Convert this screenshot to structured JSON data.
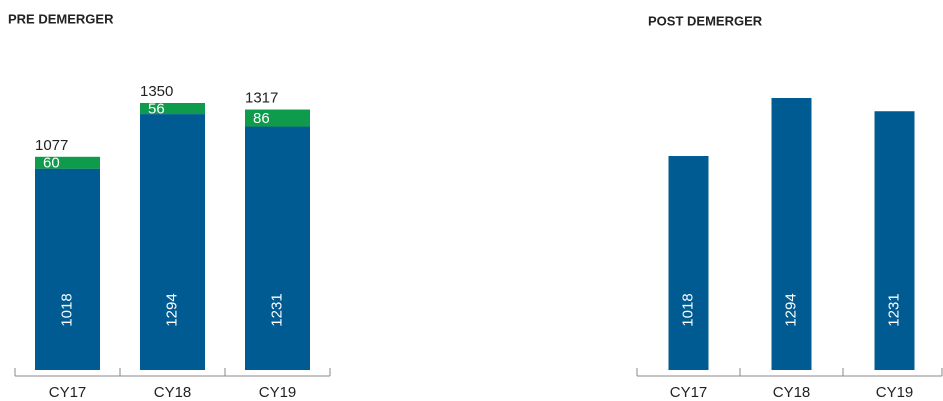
{
  "chart_data": [
    {
      "type": "bar",
      "stacked": true,
      "title": "PRE DEMERGER",
      "categories": [
        "CY17",
        "CY18",
        "CY19"
      ],
      "series": [
        {
          "color": "#005b92",
          "values": [
            1018,
            1294,
            1231
          ]
        },
        {
          "color": "#0e9b4b",
          "values": [
            60,
            56,
            86
          ]
        }
      ],
      "totals": [
        1077,
        1350,
        1317
      ]
    },
    {
      "type": "bar",
      "stacked": true,
      "title": "POST DEMERGER",
      "categories": [
        "CY17",
        "CY18",
        "CY19"
      ],
      "series": [
        {
          "color": "#005b92",
          "values": [
            1018,
            1294,
            1231
          ]
        }
      ]
    }
  ]
}
